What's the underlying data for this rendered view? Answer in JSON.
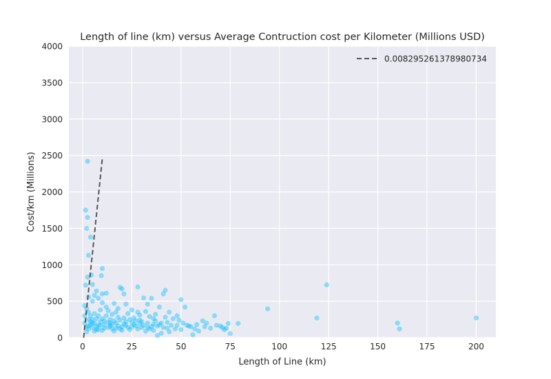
{
  "chart_data": {
    "type": "scatter",
    "title": "Length of line (km) versus Average Contruction cost per Kilometer (Millions USD)",
    "xlabel": "Length of Line (km)",
    "ylabel": "Cost/km (Millions)",
    "xlim": [
      -7,
      210
    ],
    "ylim": [
      0,
      4000
    ],
    "xticks": [
      0,
      25,
      50,
      75,
      100,
      125,
      150,
      175,
      200
    ],
    "yticks": [
      0,
      500,
      1000,
      1500,
      2000,
      2500,
      3000,
      3500,
      4000
    ],
    "grid": true,
    "legend_position": "top-right",
    "colors": {
      "background": "#eaeaf2",
      "grid": "#ffffff",
      "points": "#00bfff",
      "fit_line": "#555555"
    },
    "series": [
      {
        "type": "scatter",
        "points": [
          [
            2.5,
            2420
          ],
          [
            1.5,
            1750
          ],
          [
            2.5,
            1650
          ],
          [
            2.0,
            1500
          ],
          [
            4.0,
            1380
          ],
          [
            3.0,
            1130
          ],
          [
            10,
            950
          ],
          [
            4.5,
            860
          ],
          [
            2.5,
            830
          ],
          [
            9.5,
            850
          ],
          [
            1.5,
            720
          ],
          [
            5.0,
            730
          ],
          [
            19,
            690
          ],
          [
            20,
            670
          ],
          [
            28,
            695
          ],
          [
            42,
            650
          ],
          [
            7,
            640
          ],
          [
            10,
            600
          ],
          [
            6,
            580
          ],
          [
            3,
            560
          ],
          [
            8,
            540
          ],
          [
            12,
            610
          ],
          [
            21,
            600
          ],
          [
            35,
            540
          ],
          [
            31,
            545
          ],
          [
            41,
            600
          ],
          [
            50,
            520
          ],
          [
            5,
            500
          ],
          [
            10,
            480
          ],
          [
            16,
            470
          ],
          [
            22,
            460
          ],
          [
            33,
            460
          ],
          [
            39,
            420
          ],
          [
            52,
            420
          ],
          [
            1,
            440
          ],
          [
            2,
            400
          ],
          [
            3,
            350
          ],
          [
            1,
            300
          ],
          [
            13,
            370
          ],
          [
            18,
            400
          ],
          [
            25,
            380
          ],
          [
            28,
            350
          ],
          [
            32,
            360
          ],
          [
            44,
            350
          ],
          [
            48,
            300
          ],
          [
            67,
            300
          ],
          [
            61,
            230
          ],
          [
            63,
            200
          ],
          [
            74,
            195
          ],
          [
            79,
            195
          ],
          [
            94,
            395
          ],
          [
            119,
            270
          ],
          [
            124,
            725
          ],
          [
            160,
            200
          ],
          [
            161,
            120
          ],
          [
            200,
            270
          ],
          [
            55,
            150
          ],
          [
            57,
            120
          ],
          [
            59,
            90
          ],
          [
            56,
            40
          ],
          [
            70,
            160
          ],
          [
            72,
            110
          ],
          [
            73,
            130
          ],
          [
            75,
            55
          ],
          [
            47,
            120
          ],
          [
            44,
            80
          ],
          [
            40,
            60
          ],
          [
            38,
            30
          ],
          [
            36,
            100
          ],
          [
            51,
            200
          ],
          [
            53,
            170
          ],
          [
            49,
            240
          ],
          [
            30,
            220
          ],
          [
            26,
            180
          ],
          [
            24,
            250
          ],
          [
            22,
            220
          ],
          [
            20,
            150
          ],
          [
            18,
            280
          ],
          [
            17,
            200
          ],
          [
            15,
            120
          ],
          [
            14,
            250
          ],
          [
            12,
            300
          ],
          [
            11,
            180
          ],
          [
            10,
            100
          ],
          [
            9,
            220
          ],
          [
            8,
            300
          ],
          [
            7,
            150
          ],
          [
            6,
            90
          ],
          [
            5,
            250
          ],
          [
            4,
            180
          ],
          [
            3,
            120
          ],
          [
            2,
            80
          ],
          [
            1,
            200
          ],
          [
            2,
            150
          ],
          [
            3,
            250
          ],
          [
            4,
            300
          ],
          [
            5,
            140
          ],
          [
            6,
            200
          ],
          [
            7,
            260
          ],
          [
            8,
            110
          ],
          [
            9,
            170
          ],
          [
            11,
            130
          ],
          [
            13,
            210
          ],
          [
            14,
            160
          ],
          [
            16,
            230
          ],
          [
            19,
            120
          ],
          [
            21,
            190
          ],
          [
            23,
            140
          ],
          [
            25,
            210
          ],
          [
            27,
            160
          ],
          [
            29,
            240
          ],
          [
            31,
            170
          ],
          [
            33,
            200
          ],
          [
            35,
            150
          ],
          [
            37,
            230
          ],
          [
            39,
            180
          ],
          [
            41,
            140
          ],
          [
            43,
            210
          ],
          [
            45,
            170
          ],
          [
            46,
            260
          ],
          [
            34,
            290
          ],
          [
            29,
            310
          ],
          [
            23,
            330
          ],
          [
            17,
            350
          ],
          [
            15,
            320
          ],
          [
            42,
            280
          ],
          [
            37,
            320
          ],
          [
            26,
            270
          ],
          [
            12,
            420
          ],
          [
            9,
            380
          ],
          [
            20,
            100
          ],
          [
            28,
            120
          ],
          [
            32,
            90
          ],
          [
            36,
            260
          ],
          [
            40,
            200
          ],
          [
            18,
            160
          ],
          [
            24,
            110
          ],
          [
            27,
            230
          ],
          [
            6,
            330
          ],
          [
            4,
            220
          ],
          [
            10,
            260
          ],
          [
            13,
            140
          ],
          [
            15,
            180
          ],
          [
            19,
            240
          ],
          [
            21,
            270
          ],
          [
            16,
            90
          ],
          [
            30,
            140
          ],
          [
            34,
            120
          ],
          [
            38,
            160
          ],
          [
            43,
            130
          ],
          [
            48,
            170
          ],
          [
            50,
            110
          ],
          [
            54,
            160
          ],
          [
            58,
            180
          ],
          [
            62,
            150
          ],
          [
            65,
            130
          ],
          [
            68,
            170
          ],
          [
            71,
            140
          ],
          [
            3,
            160
          ],
          [
            5,
            200
          ],
          [
            7,
            110
          ],
          [
            8,
            170
          ],
          [
            11,
            230
          ],
          [
            14,
            200
          ],
          [
            17,
            130
          ],
          [
            22,
            170
          ],
          [
            25,
            150
          ],
          [
            29,
            190
          ],
          [
            33,
            140
          ],
          [
            36,
            180
          ]
        ]
      },
      {
        "type": "line",
        "name": "0.008295261378980734",
        "style": "dashed",
        "points": [
          [
            0.5,
            0
          ],
          [
            10.0,
            2460
          ]
        ]
      }
    ]
  }
}
